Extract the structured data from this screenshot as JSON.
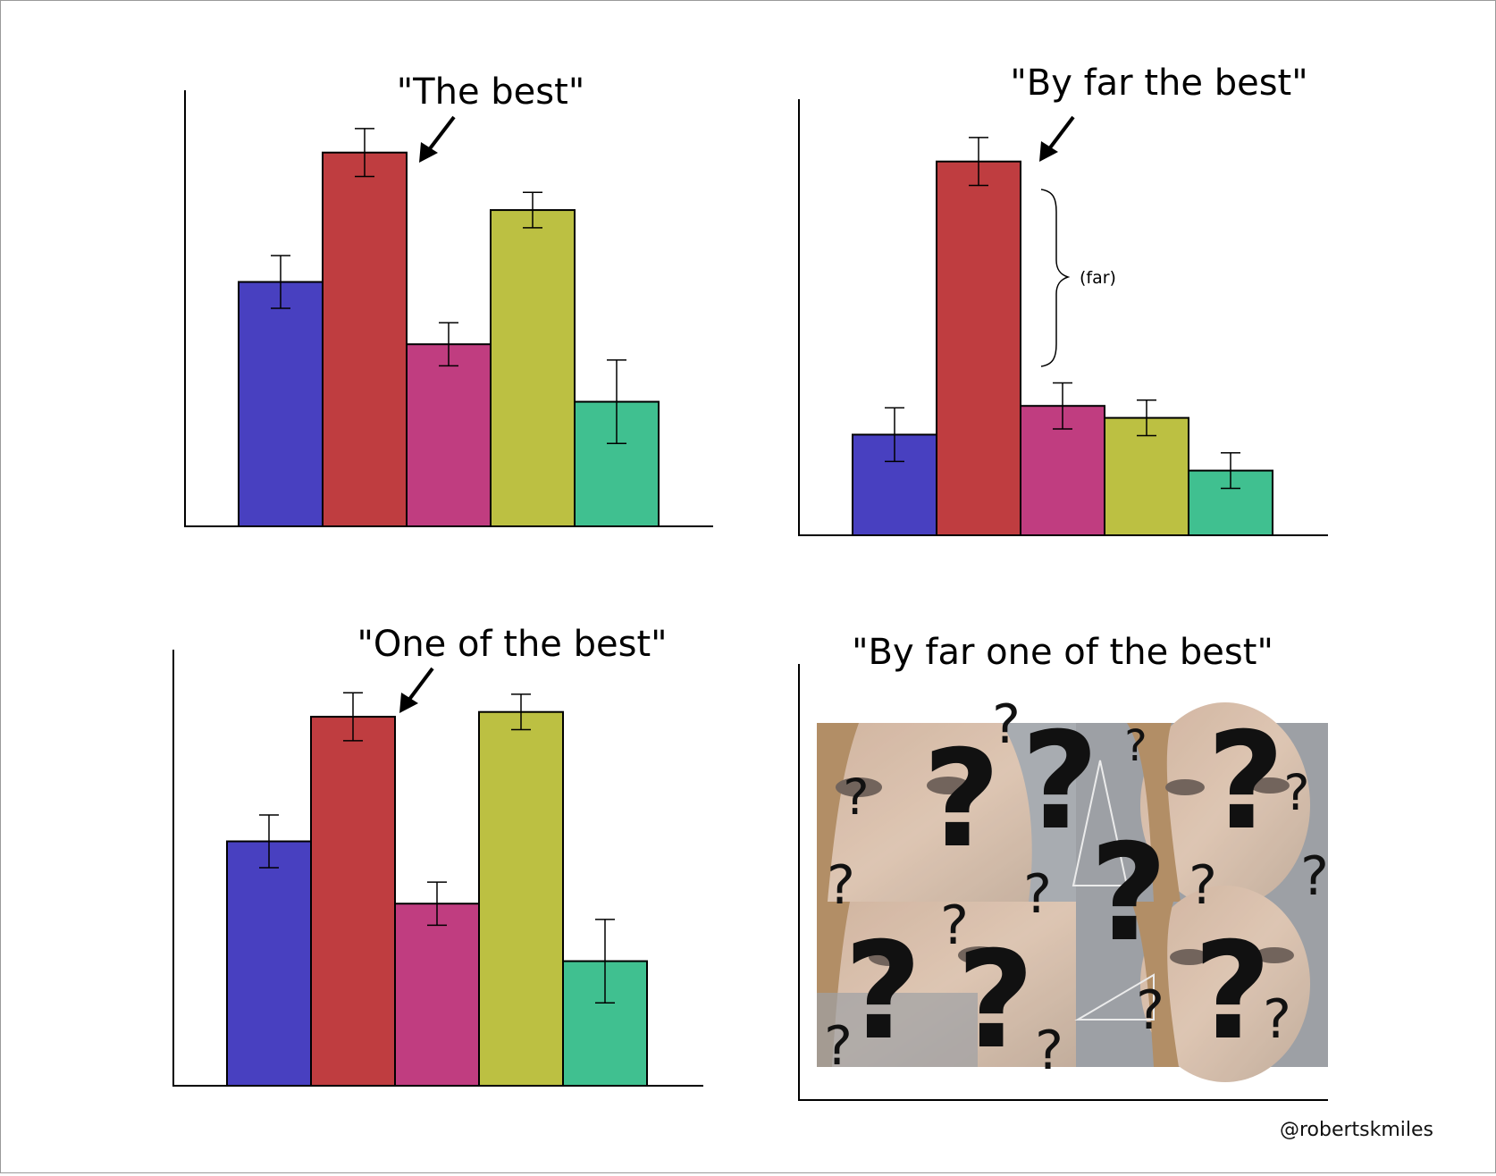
{
  "credit": "@robertskmiles",
  "colors": [
    "#4840c0",
    "#bf3d40",
    "#c03d80",
    "#bcc042",
    "#40c090"
  ],
  "chart_data": [
    {
      "type": "bar",
      "title": "\"The best\"",
      "values": [
        5.1,
        7.8,
        3.8,
        6.6,
        2.6
      ],
      "errors": [
        0.55,
        0.5,
        0.45,
        0.37,
        0.87
      ],
      "ylim": [
        0,
        9.1
      ],
      "annotation_bar": 1
    },
    {
      "type": "bar",
      "title": "\"By far the best\"",
      "values": [
        2.1,
        7.8,
        2.7,
        2.45,
        1.35
      ],
      "errors": [
        0.56,
        0.5,
        0.48,
        0.37,
        0.37
      ],
      "ylim": [
        0,
        9.1
      ],
      "annotation_bar": 1,
      "brace_label": "(far)"
    },
    {
      "type": "bar",
      "title": "\"One of the best\"",
      "values": [
        5.1,
        7.7,
        3.8,
        7.8,
        2.6
      ],
      "errors": [
        0.55,
        0.5,
        0.45,
        0.37,
        0.87
      ],
      "ylim": [
        0,
        9.1
      ],
      "annotation_bar": 1
    },
    {
      "type": "image",
      "title": "\"By far one of the best\"",
      "image": "confused-math-lady-meme",
      "glyph": "?"
    }
  ]
}
